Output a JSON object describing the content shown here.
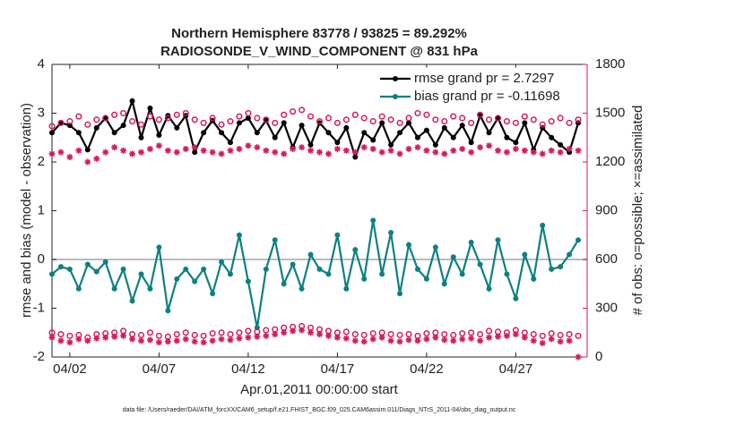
{
  "chart_data": {
    "type": "line",
    "title": [
      "Northern Hemisphere 83778 / 93825 = 89.292%",
      "RADIOSONDE_V_WIND_COMPONENT @ 831 hPa"
    ],
    "xlabel": "Apr.01,2011 00:00:00 start",
    "ylabel": "rmse and bias (model - observation)",
    "y2label": "# of obs: o=possible; ×=assimilated",
    "footnote": "data file: /Users/raeder/DAI/ATM_forcXX/CAM6_setup/f.e21.FHIST_BGC.f09_025.CAM6assim.011/Diags_NTrS_2011-04/obs_diag_output.nc",
    "xlim": [
      0,
      30
    ],
    "xticks": [
      {
        "value": 1,
        "label": "04/02"
      },
      {
        "value": 6,
        "label": "04/07"
      },
      {
        "value": 11,
        "label": "04/12"
      },
      {
        "value": 16,
        "label": "04/17"
      },
      {
        "value": 21,
        "label": "04/22"
      },
      {
        "value": 26,
        "label": "04/27"
      }
    ],
    "ylim": [
      -2,
      4
    ],
    "yticks": [
      -2,
      -1,
      0,
      1,
      2,
      3,
      4
    ],
    "y2lim": [
      0,
      1800
    ],
    "y2ticks": [
      0,
      300,
      600,
      900,
      1200,
      1500,
      1800
    ],
    "y2color": "#d6195e",
    "legend_text_color": "#1a56e0",
    "x": [
      0,
      0.5,
      1,
      1.5,
      2,
      2.5,
      3,
      3.5,
      4,
      4.5,
      5,
      5.5,
      6,
      6.5,
      7,
      7.5,
      8,
      8.5,
      9,
      9.5,
      10,
      10.5,
      11,
      11.5,
      12,
      12.5,
      13,
      13.5,
      14,
      14.5,
      15,
      15.5,
      16,
      16.5,
      17,
      17.5,
      18,
      18.5,
      19,
      19.5,
      20,
      20.5,
      21,
      21.5,
      22,
      22.5,
      23,
      23.5,
      24,
      24.5,
      25,
      25.5,
      26,
      26.5,
      27,
      27.5,
      28,
      28.5,
      29,
      29.5
    ],
    "series": [
      {
        "name": "rmse grand pr = 2.7297",
        "color": "#000000",
        "marker": "dot",
        "values": [
          2.6,
          2.8,
          2.75,
          2.6,
          2.25,
          2.7,
          2.9,
          2.6,
          2.75,
          3.25,
          2.5,
          3.1,
          2.55,
          2.95,
          2.7,
          2.95,
          2.2,
          2.6,
          2.85,
          2.6,
          2.4,
          2.8,
          2.9,
          2.6,
          2.85,
          2.5,
          2.8,
          2.3,
          2.75,
          2.35,
          2.8,
          2.6,
          2.4,
          2.7,
          2.1,
          2.6,
          2.45,
          2.8,
          2.35,
          2.6,
          2.8,
          2.5,
          2.65,
          2.35,
          2.7,
          2.5,
          2.75,
          2.4,
          2.95,
          2.6,
          2.9,
          2.5,
          2.4,
          2.8,
          2.25,
          2.7,
          2.5,
          2.35,
          2.2,
          2.8
        ]
      },
      {
        "name": "bias grand pr = -0.11698",
        "color": "#0e8080",
        "marker": "dot",
        "values": [
          -0.3,
          -0.15,
          -0.2,
          -0.6,
          -0.1,
          -0.25,
          -0.05,
          -0.6,
          -0.2,
          -0.85,
          -0.3,
          -0.6,
          0.25,
          -1.05,
          -0.4,
          -0.2,
          -0.45,
          -0.2,
          -0.7,
          -0.05,
          -0.3,
          0.5,
          -0.45,
          -1.4,
          -0.2,
          0.4,
          -0.5,
          -0.1,
          -0.6,
          0.1,
          -0.2,
          -0.3,
          0.5,
          -0.6,
          0.2,
          -0.4,
          0.8,
          -0.3,
          0.55,
          -0.7,
          0.3,
          -0.2,
          -0.4,
          0.25,
          -0.5,
          0.05,
          -0.3,
          0.35,
          -0.1,
          -0.6,
          0.4,
          -0.3,
          -0.8,
          0.1,
          -0.4,
          0.7,
          -0.2,
          -0.15,
          0.1,
          0.4
        ]
      },
      {
        "axis": "y2",
        "color": "#d6195e",
        "marker": "circle",
        "values": [
          1420,
          1440,
          1450,
          1480,
          1430,
          1460,
          1470,
          1490,
          1500,
          1450,
          1430,
          1480,
          1460,
          1470,
          1490,
          1500,
          1460,
          1440,
          1470,
          1430,
          1450,
          1480,
          1500,
          1470,
          1460,
          1440,
          1490,
          1510,
          1520,
          1480,
          1450,
          1470,
          1440,
          1460,
          1490,
          1470,
          1450,
          1480,
          1460,
          1440,
          1470,
          1500,
          1490,
          1460,
          1450,
          1480,
          1470,
          1440,
          1490,
          1460,
          1470,
          1450,
          1440,
          1480,
          1460,
          1430,
          1450,
          1470,
          1440,
          1460
        ]
      },
      {
        "axis": "y2",
        "color": "#d6195e",
        "marker": "asterisk",
        "values": [
          1250,
          1260,
          1230,
          1270,
          1200,
          1220,
          1260,
          1290,
          1270,
          1250,
          1260,
          1280,
          1300,
          1270,
          1260,
          1280,
          1290,
          1270,
          1260,
          1250,
          1270,
          1280,
          1300,
          1290,
          1270,
          1260,
          1250,
          1280,
          1290,
          1270,
          1260,
          1250,
          1280,
          1270,
          1260,
          1290,
          1280,
          1260,
          1270,
          1250,
          1280,
          1290,
          1270,
          1260,
          1250,
          1270,
          1280,
          1260,
          1290,
          1300,
          1270,
          1260,
          1280,
          1270,
          1260,
          1250,
          1270,
          1260,
          1280,
          1270
        ]
      },
      {
        "axis": "y2",
        "color": "#d6195e",
        "marker": "circle",
        "values": [
          150,
          140,
          130,
          135,
          120,
          140,
          145,
          150,
          160,
          140,
          135,
          150,
          130,
          125,
          140,
          150,
          135,
          130,
          145,
          150,
          140,
          150,
          160,
          155,
          165,
          170,
          180,
          185,
          190,
          180,
          170,
          160,
          150,
          155,
          140,
          135,
          145,
          150,
          140,
          135,
          140,
          130,
          145,
          150,
          140,
          135,
          145,
          150,
          140,
          160,
          155,
          150,
          165,
          150,
          140,
          130,
          145,
          135,
          140,
          130
        ]
      },
      {
        "axis": "y2",
        "color": "#d6195e",
        "marker": "asterisk",
        "values": [
          120,
          100,
          90,
          110,
          100,
          115,
          120,
          125,
          130,
          110,
          100,
          105,
          90,
          95,
          100,
          110,
          95,
          90,
          100,
          110,
          105,
          115,
          120,
          125,
          130,
          140,
          150,
          160,
          165,
          150,
          140,
          130,
          120,
          115,
          100,
          95,
          110,
          120,
          100,
          95,
          105,
          100,
          110,
          120,
          105,
          100,
          110,
          115,
          100,
          120,
          125,
          130,
          140,
          120,
          100,
          85,
          110,
          95,
          100,
          0
        ]
      }
    ]
  }
}
